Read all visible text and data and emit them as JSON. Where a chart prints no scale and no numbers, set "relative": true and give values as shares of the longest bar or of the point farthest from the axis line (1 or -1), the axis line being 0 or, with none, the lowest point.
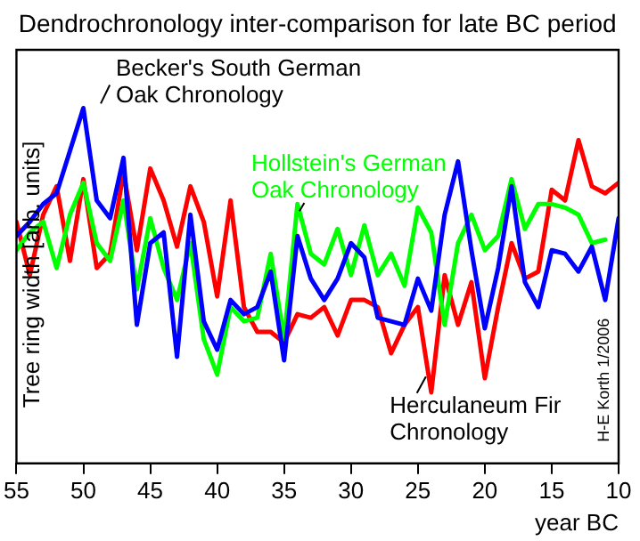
{
  "chart_data": {
    "type": "line",
    "title": "Dendrochronology inter-comparison for late BC period",
    "xlabel": "year BC",
    "ylabel": "Tree ring width [arb. units]",
    "relative": true,
    "xlim": [
      55,
      10
    ],
    "xticks": [
      55,
      50,
      45,
      40,
      35,
      30,
      25,
      20,
      15,
      10
    ],
    "x": [
      55,
      54,
      53,
      52,
      51,
      50,
      49,
      48,
      47,
      46,
      45,
      44,
      43,
      42,
      41,
      40,
      39,
      38,
      37,
      36,
      35,
      34,
      33,
      32,
      31,
      30,
      29,
      28,
      27,
      26,
      25,
      24,
      23,
      22,
      21,
      20,
      19,
      18,
      17,
      16,
      15,
      14,
      13,
      12,
      11,
      10
    ],
    "grid": false,
    "legend": false,
    "marker": "none",
    "line_style": "solid",
    "series": [
      {
        "name": "Becker's South German Oak Chronology",
        "color": "#0000ff",
        "values": [
          0.64,
          0.68,
          0.73,
          0.76,
          0.88,
          1.0,
          0.74,
          0.69,
          0.86,
          0.39,
          0.62,
          0.65,
          0.3,
          0.7,
          0.4,
          0.32,
          0.46,
          0.42,
          0.44,
          0.54,
          0.29,
          0.64,
          0.52,
          0.46,
          0.52,
          0.62,
          0.58,
          0.41,
          0.4,
          0.39,
          0.52,
          0.43,
          0.7,
          0.85,
          0.6,
          0.38,
          0.55,
          0.78,
          0.51,
          0.44,
          0.6,
          0.59,
          0.54,
          0.61,
          0.46,
          0.69
        ]
      },
      {
        "name": "Hollstein's German Oak Chronology",
        "color": "#00ff00",
        "values": [
          0.6,
          0.65,
          0.68,
          0.55,
          0.7,
          0.79,
          0.62,
          0.57,
          0.74,
          0.49,
          0.69,
          0.55,
          0.46,
          0.62,
          0.35,
          0.25,
          0.44,
          0.4,
          0.41,
          0.59,
          0.35,
          0.73,
          0.59,
          0.56,
          0.66,
          0.53,
          0.67,
          0.53,
          0.59,
          0.5,
          0.72,
          0.65,
          0.39,
          0.62,
          0.7,
          0.6,
          0.64,
          0.8,
          0.66,
          0.73,
          0.73,
          0.72,
          0.7,
          0.62,
          0.63,
          null
        ]
      },
      {
        "name": "Herculaneum Fir Chronology",
        "color": "#ff0000",
        "values": [
          0.68,
          0.53,
          0.7,
          0.78,
          0.57,
          0.8,
          0.55,
          0.59,
          0.82,
          0.6,
          0.83,
          0.74,
          0.61,
          0.78,
          0.68,
          0.47,
          0.74,
          0.44,
          0.37,
          0.37,
          0.34,
          0.42,
          0.41,
          0.44,
          0.36,
          0.46,
          0.46,
          0.44,
          0.31,
          0.39,
          0.44,
          0.2,
          0.53,
          0.39,
          0.51,
          0.24,
          0.44,
          0.62,
          0.52,
          0.54,
          0.77,
          0.74,
          0.91,
          0.78,
          0.76,
          0.79
        ]
      }
    ],
    "annotations": [
      "H-E Korth 1/2006"
    ]
  }
}
